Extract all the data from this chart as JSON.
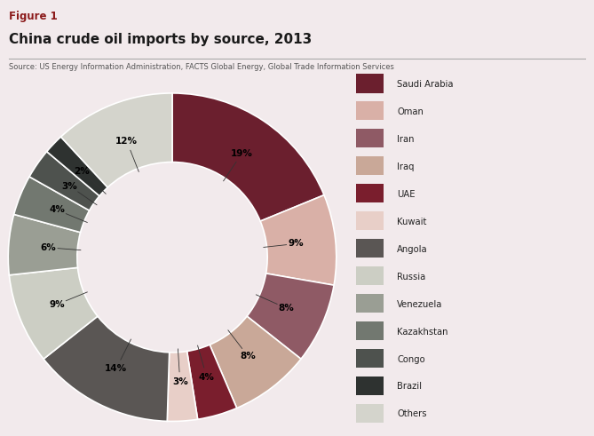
{
  "figure_label": "Figure 1",
  "title": "China crude oil imports by source, 2013",
  "source_text": "Source: US Energy Information Administration, FACTS Global Energy, Global Trade Information Services",
  "background_color": "#f2eaec",
  "labels": [
    "Saudi Arabia",
    "Oman",
    "Iran",
    "Iraq",
    "UAE",
    "Kuwait",
    "Angola",
    "Russia",
    "Venezuela",
    "Kazakhstan",
    "Congo",
    "Brazil",
    "Others"
  ],
  "values": [
    19,
    9,
    8,
    8,
    4,
    3,
    14,
    9,
    6,
    4,
    3,
    2,
    12
  ],
  "colors": [
    "#6b1f2e",
    "#d9b0a7",
    "#8f5a65",
    "#c9a898",
    "#7a1e2d",
    "#e8cfc8",
    "#5a5654",
    "#cccec4",
    "#9a9e94",
    "#727870",
    "#4e524e",
    "#2e3230",
    "#d4d4cc"
  ],
  "pct_labels": [
    "19%",
    "9%",
    "8%",
    "8%",
    "4%",
    "3%",
    "14%",
    "9%",
    "6%",
    "4%",
    "3%",
    "2%",
    "12%"
  ],
  "startangle": 90,
  "figure_label_color": "#8b1a1a",
  "title_color": "#1a1a1a",
  "source_color": "#555555",
  "label_line_color": "#333333"
}
